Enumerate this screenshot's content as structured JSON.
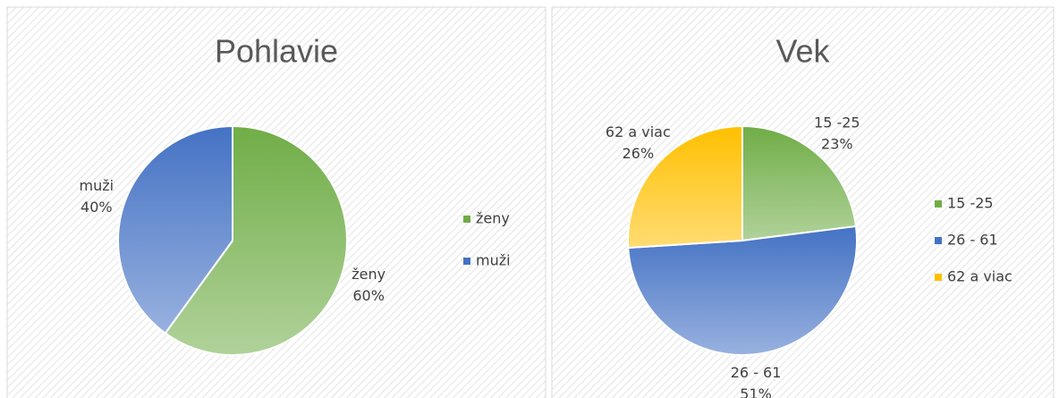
{
  "chart_data": [
    {
      "type": "pie",
      "title": "Pohlavie",
      "categories": [
        "ženy",
        "muži"
      ],
      "values": [
        60,
        40
      ],
      "value_labels": [
        "60%",
        "40%"
      ],
      "colors": [
        "#70ad47",
        "#4472c4"
      ],
      "legend": "right"
    },
    {
      "type": "pie",
      "title": "Vek",
      "categories": [
        "15 -25",
        "26 - 61",
        "62  a viac"
      ],
      "values": [
        23,
        51,
        26
      ],
      "value_labels": [
        "23%",
        "51%",
        "26%"
      ],
      "colors": [
        "#70ad47",
        "#4472c4",
        "#ffc000"
      ],
      "legend": "right"
    }
  ]
}
